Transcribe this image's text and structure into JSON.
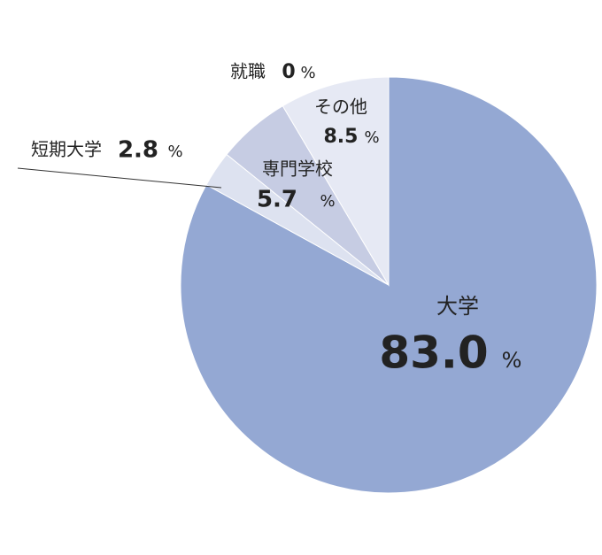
{
  "chart_data": {
    "type": "pie",
    "categories": [
      "大学",
      "短期大学",
      "専門学校",
      "その他",
      "就職"
    ],
    "values": [
      83.0,
      2.8,
      5.7,
      8.5,
      0
    ],
    "value_labels": [
      "83.0",
      "2.8",
      "5.7",
      "8.5",
      "0"
    ],
    "unit": "%",
    "colors": [
      "#94a8d3",
      "#dde2f0",
      "#c6cce3",
      "#e6e9f4",
      "#e6e9f4"
    ]
  }
}
